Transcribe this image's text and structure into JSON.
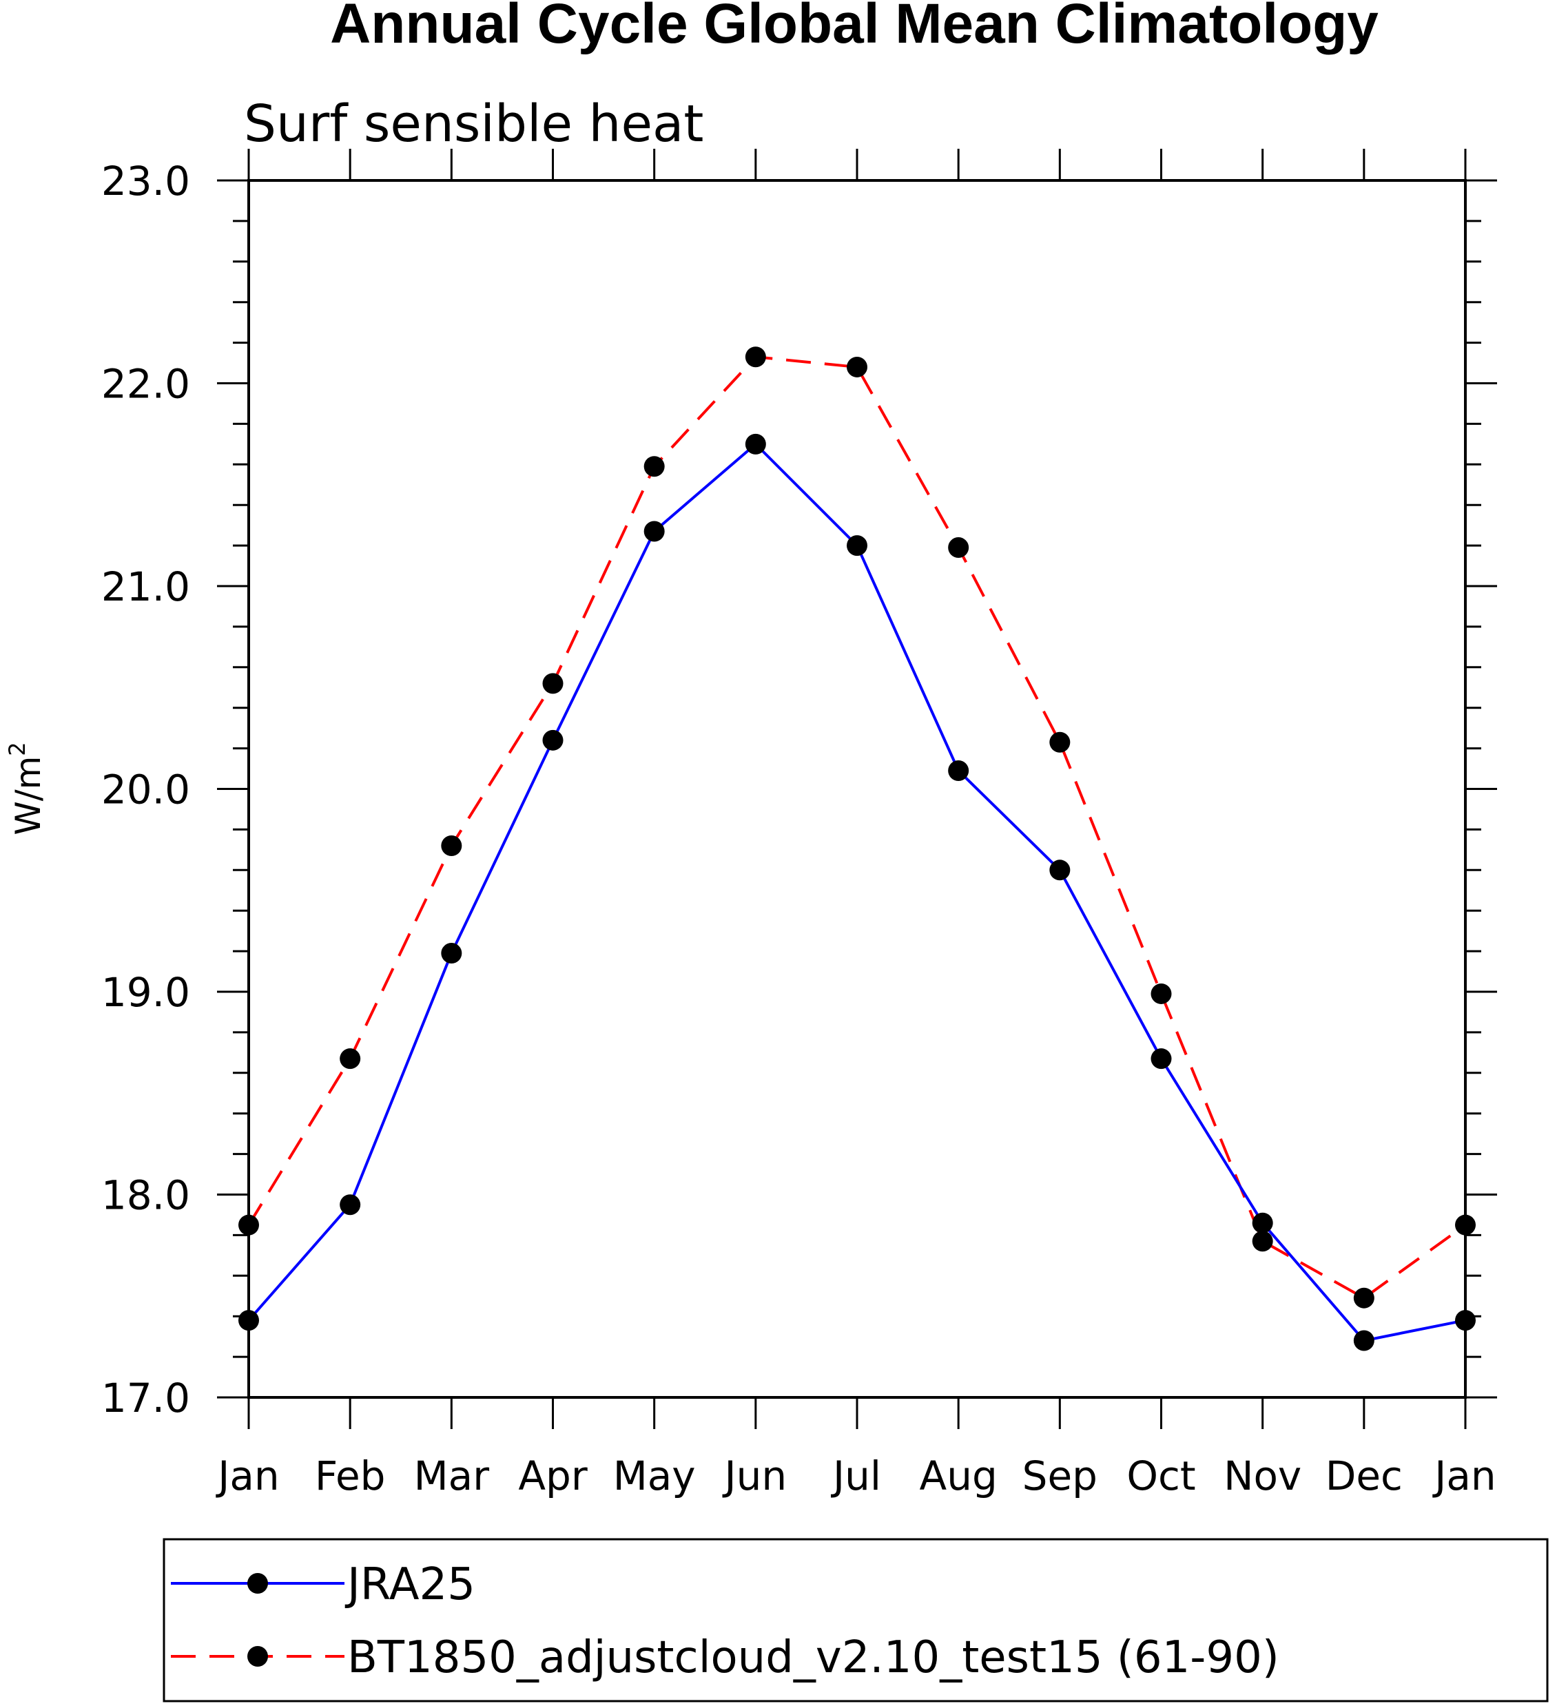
{
  "chart_data": {
    "type": "line",
    "title": "Annual Cycle Global Mean Climatology",
    "subtitle": "Surf sensible heat",
    "ylabel": "W/m",
    "ylabel_superscript": "2",
    "xlabel": "",
    "categories": [
      "Jan",
      "Feb",
      "Mar",
      "Apr",
      "May",
      "Jun",
      "Jul",
      "Aug",
      "Sep",
      "Oct",
      "Nov",
      "Dec",
      "Jan"
    ],
    "ylim": [
      17.0,
      23.0
    ],
    "yticks": [
      "17.0",
      "18.0",
      "19.0",
      "20.0",
      "21.0",
      "22.0",
      "23.0"
    ],
    "grid": false,
    "legend_position": "bottom",
    "series": [
      {
        "name": "JRA25",
        "color": "#0000ff",
        "dash": "solid",
        "marker": "filled-circle",
        "values": [
          17.38,
          17.95,
          19.19,
          20.24,
          21.27,
          21.7,
          21.2,
          20.09,
          19.6,
          18.67,
          17.86,
          17.28,
          17.38
        ]
      },
      {
        "name": "BT1850_adjustcloud_v2.10_test15 (61-90)",
        "color": "#ff0000",
        "dash": "dashed",
        "marker": "filled-circle",
        "values": [
          17.85,
          18.67,
          19.72,
          20.52,
          21.59,
          22.13,
          22.08,
          21.19,
          20.23,
          18.99,
          17.77,
          17.49,
          17.85
        ]
      }
    ]
  }
}
